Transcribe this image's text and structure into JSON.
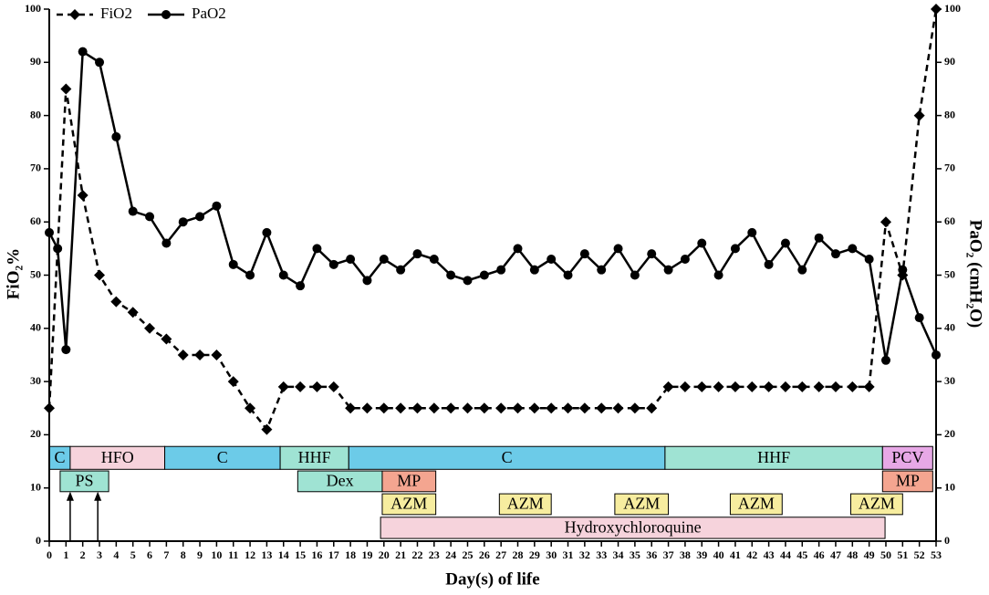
{
  "chart_data": {
    "type": "line",
    "xlabel": "Day(s) of life",
    "ylabel": "FiO₂%",
    "y2label": "PaO₂ (cmH₂O)",
    "xlim": [
      0,
      53
    ],
    "xticks": [
      0,
      1,
      2,
      3,
      4,
      5,
      6,
      7,
      8,
      9,
      10,
      11,
      12,
      13,
      14,
      15,
      16,
      17,
      18,
      19,
      20,
      21,
      22,
      23,
      24,
      25,
      26,
      27,
      28,
      29,
      30,
      31,
      32,
      33,
      34,
      35,
      36,
      37,
      38,
      39,
      40,
      41,
      42,
      43,
      44,
      45,
      46,
      47,
      48,
      49,
      50,
      51,
      52,
      53
    ],
    "ylim": [
      0,
      100
    ],
    "yticks": [
      0,
      10,
      20,
      30,
      40,
      50,
      60,
      70,
      80,
      90,
      100
    ],
    "y2lim": [
      0,
      100
    ],
    "y2ticks": [
      0,
      10,
      20,
      30,
      40,
      50,
      60,
      70,
      80,
      90,
      100
    ],
    "series": [
      {
        "name": "FiO2",
        "color": "#000000",
        "marker": "diamond",
        "dash": true,
        "x": [
          0,
          1,
          2,
          3,
          4,
          5,
          6,
          7,
          8,
          9,
          10,
          11,
          12,
          13,
          14,
          15,
          16,
          17,
          18,
          19,
          20,
          21,
          22,
          23,
          24,
          25,
          26,
          27,
          28,
          29,
          30,
          31,
          32,
          33,
          34,
          35,
          36,
          37,
          38,
          39,
          40,
          41,
          42,
          43,
          44,
          45,
          46,
          47,
          48,
          49,
          50,
          51,
          52,
          53
        ],
        "values": [
          25,
          85,
          65,
          50,
          45,
          43,
          40,
          38,
          35,
          35,
          35,
          30,
          25,
          21,
          29,
          29,
          29,
          29,
          25,
          25,
          25,
          25,
          25,
          25,
          25,
          25,
          25,
          25,
          25,
          25,
          25,
          25,
          25,
          25,
          25,
          25,
          25,
          29,
          29,
          29,
          29,
          29,
          29,
          29,
          29,
          29,
          29,
          29,
          29,
          29,
          60,
          50,
          80,
          100
        ]
      },
      {
        "name": "PaO2",
        "color": "#000000",
        "marker": "circle",
        "dash": false,
        "axis": "y2",
        "x": [
          0,
          0.5,
          1,
          2,
          3,
          4,
          5,
          6,
          7,
          8,
          9,
          10,
          11,
          12,
          13,
          14,
          15,
          16,
          17,
          18,
          19,
          20,
          21,
          22,
          23,
          24,
          25,
          26,
          27,
          28,
          29,
          30,
          31,
          32,
          33,
          34,
          35,
          36,
          37,
          38,
          39,
          40,
          41,
          42,
          43,
          44,
          45,
          46,
          47,
          48,
          49,
          50,
          51,
          52,
          53
        ],
        "values": [
          58,
          55,
          36,
          92,
          90,
          76,
          62,
          61,
          56,
          60,
          61,
          63,
          52,
          50,
          58,
          50,
          48,
          55,
          52,
          53,
          49,
          53,
          51,
          54,
          53,
          50,
          49,
          50,
          51,
          55,
          51,
          53,
          50,
          54,
          51,
          55,
          50,
          54,
          51,
          53,
          56,
          50,
          55,
          58,
          52,
          56,
          51,
          57,
          54,
          55,
          53,
          34,
          51,
          42,
          35
        ]
      }
    ],
    "treatments": [
      {
        "label": "C",
        "start": 0,
        "end": 1.25,
        "low": 13.5,
        "high": 17.8,
        "color": "#6ccbe8"
      },
      {
        "label": "HFO",
        "start": 1.25,
        "end": 6.9,
        "low": 13.5,
        "high": 17.8,
        "color": "#f6d3dc"
      },
      {
        "label": "C",
        "start": 6.9,
        "end": 13.8,
        "low": 13.5,
        "high": 17.8,
        "color": "#6ccbe8"
      },
      {
        "label": "HHF",
        "start": 13.8,
        "end": 17.9,
        "low": 13.5,
        "high": 17.8,
        "color": "#9fe3d3"
      },
      {
        "label": "C",
        "start": 17.9,
        "end": 36.8,
        "low": 13.5,
        "high": 17.8,
        "color": "#6ccbe8"
      },
      {
        "label": "HHF",
        "start": 36.8,
        "end": 49.8,
        "low": 13.5,
        "high": 17.8,
        "color": "#9fe3d3"
      },
      {
        "label": "PCV",
        "start": 49.8,
        "end": 52.8,
        "low": 13.5,
        "high": 17.8,
        "color": "#e7a8e6"
      },
      {
        "label": "PS",
        "start": 0.65,
        "end": 3.55,
        "low": 9.3,
        "high": 13.2,
        "color": "#9fe3d3"
      },
      {
        "label": "Dex",
        "start": 14.85,
        "end": 19.9,
        "low": 9.3,
        "high": 13.2,
        "color": "#9fe3d3"
      },
      {
        "label": "MP",
        "start": 19.9,
        "end": 23.1,
        "low": 9.3,
        "high": 13.2,
        "color": "#f4a590"
      },
      {
        "label": "MP",
        "start": 49.8,
        "end": 52.8,
        "low": 9.3,
        "high": 13.2,
        "color": "#f4a590"
      },
      {
        "label": "AZM",
        "start": 19.9,
        "end": 23.1,
        "low": 5,
        "high": 8.9,
        "color": "#f7ed9f"
      },
      {
        "label": "AZM",
        "start": 26.9,
        "end": 30,
        "low": 5,
        "high": 8.9,
        "color": "#f7ed9f"
      },
      {
        "label": "AZM",
        "start": 33.8,
        "end": 37,
        "low": 5,
        "high": 8.9,
        "color": "#f7ed9f"
      },
      {
        "label": "AZM",
        "start": 40.7,
        "end": 43.8,
        "low": 5,
        "high": 8.9,
        "color": "#f7ed9f"
      },
      {
        "label": "AZM",
        "start": 47.9,
        "end": 51,
        "low": 5,
        "high": 8.9,
        "color": "#f7ed9f"
      },
      {
        "label": "Hydroxychloroquine",
        "start": 19.8,
        "end": 49.95,
        "low": 0.5,
        "high": 4.5,
        "color": "#f6d3dc"
      }
    ],
    "arrows": [
      {
        "x": 1.25,
        "from": 0,
        "to": 9.3
      },
      {
        "x": 2.9,
        "from": 0,
        "to": 9.3
      }
    ]
  }
}
